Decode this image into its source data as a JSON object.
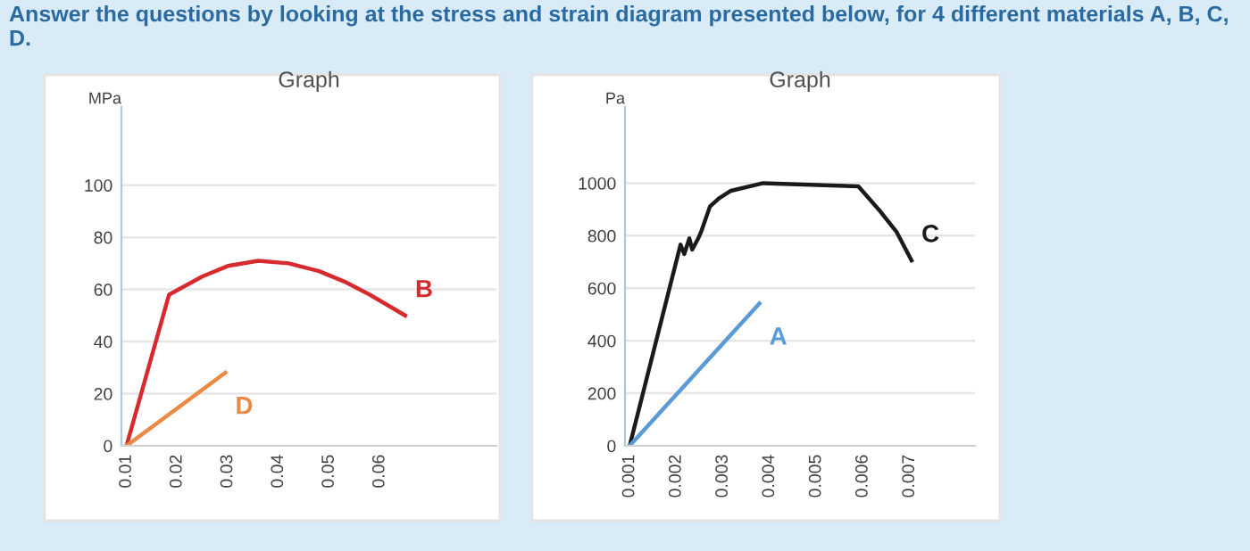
{
  "chart_data": [
    {
      "type": "line",
      "title": "Graph",
      "ylabel": "MPa",
      "annotations": [
        "Answer the questions by looking at the stress and strain diagram presented below, for 4 different materials A, B, C, D."
      ],
      "series": [
        {
          "name": "B",
          "color": "#d62a2f",
          "x": [
            0.01,
            0.0184,
            0.025,
            0.03,
            0.036,
            0.042,
            0.048,
            0.053,
            0.058,
            0.065
          ],
          "values": [
            0,
            58,
            65,
            69,
            71,
            70,
            67,
            63,
            58,
            50
          ]
        },
        {
          "name": "D",
          "color": "#eb8a44",
          "x": [
            0.01,
            0.0295
          ],
          "values": [
            0,
            28
          ]
        }
      ],
      "xlim": [
        0.009,
        0.083
      ],
      "xticks": [
        0.01,
        0.02,
        0.03,
        0.04,
        0.05,
        0.06
      ],
      "ylim": [
        0,
        130
      ],
      "yticks": [
        0,
        20,
        40,
        60,
        80,
        100
      ],
      "grid": "y",
      "legend": false,
      "marker": "none",
      "line_style": "solid"
    },
    {
      "type": "line",
      "title": "Graph",
      "ylabel": "Pa",
      "series": [
        {
          "name": "C",
          "color": "#1a1a1a",
          "x": [
            0.001,
            0.00209,
            0.00217,
            0.00228,
            0.00234,
            0.00247,
            0.00253,
            0.00272,
            0.00291,
            0.00317,
            0.00386,
            0.0059,
            0.00634,
            0.00672,
            0.00704
          ],
          "values": [
            0,
            766,
            730,
            790,
            747,
            790,
            814,
            911,
            942,
            971,
            1000,
            988,
            899,
            814,
            706
          ]
        },
        {
          "name": "A",
          "color": "#5b9bd5",
          "x": [
            0.001,
            0.00378
          ],
          "values": [
            0,
            542
          ]
        }
      ],
      "xlim": [
        0.0009,
        0.0084
      ],
      "xticks": [
        0.001,
        0.002,
        0.003,
        0.004,
        0.005,
        0.006,
        0.007
      ],
      "ylim": [
        0,
        1290
      ],
      "yticks": [
        0,
        200,
        400,
        600,
        800,
        1000
      ],
      "grid": "y",
      "legend": false,
      "marker": "none",
      "line_style": "solid"
    }
  ]
}
